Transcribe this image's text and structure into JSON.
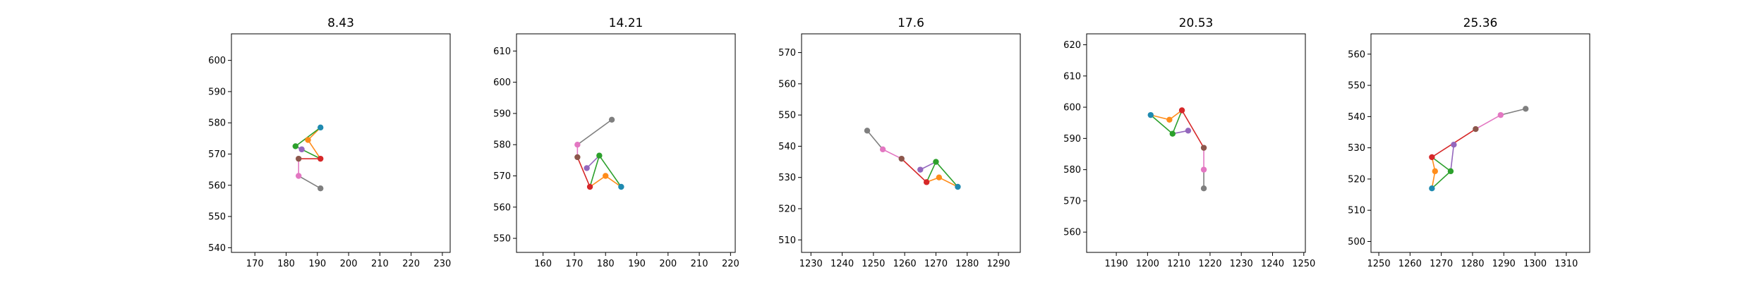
{
  "chart_data": [
    {
      "type": "line",
      "title": "8.43",
      "xlim": [
        162.5,
        232.5
      ],
      "ylim": [
        538.5,
        608.5
      ],
      "xticks": [
        170,
        180,
        190,
        200,
        210,
        220,
        230
      ],
      "yticks": [
        540,
        550,
        560,
        570,
        580,
        590,
        600
      ],
      "points": {
        "teal": [
          191,
          578.5
        ],
        "orange": [
          187,
          574.5
        ],
        "green": [
          183,
          572.5
        ],
        "red": [
          191,
          568.5
        ],
        "purple": [
          185,
          571.5
        ],
        "brown": [
          184,
          568.5
        ],
        "pink": [
          184,
          563
        ],
        "gray": [
          191,
          559
        ]
      }
    },
    {
      "type": "line",
      "title": "14.21",
      "xlim": [
        151.5,
        221.5
      ],
      "ylim": [
        545.5,
        615.5
      ],
      "xticks": [
        160,
        170,
        180,
        190,
        200,
        210,
        220
      ],
      "yticks": [
        550,
        560,
        570,
        580,
        590,
        600,
        610
      ],
      "points": {
        "teal": [
          185,
          566.5
        ],
        "orange": [
          180,
          570
        ],
        "green": [
          178,
          576.5
        ],
        "red": [
          175,
          566.5
        ],
        "purple": [
          174,
          572.5
        ],
        "brown": [
          171,
          576
        ],
        "pink": [
          171,
          580
        ],
        "gray": [
          182,
          588
        ]
      }
    },
    {
      "type": "line",
      "title": "17.6",
      "xlim": [
        1227,
        1297
      ],
      "ylim": [
        506,
        576
      ],
      "xticks": [
        1230,
        1240,
        1250,
        1260,
        1270,
        1280,
        1290
      ],
      "yticks": [
        510,
        520,
        530,
        540,
        550,
        560,
        570
      ],
      "points": {
        "teal": [
          1277,
          527
        ],
        "orange": [
          1271,
          530
        ],
        "green": [
          1270,
          535
        ],
        "red": [
          1267,
          528.5
        ],
        "purple": [
          1265,
          532.5
        ],
        "brown": [
          1259,
          536
        ],
        "pink": [
          1253,
          539
        ],
        "gray": [
          1248,
          545
        ]
      }
    },
    {
      "type": "line",
      "title": "20.53",
      "xlim": [
        1180.5,
        1250.5
      ],
      "ylim": [
        553.5,
        623.5
      ],
      "xticks": [
        1190,
        1200,
        1210,
        1220,
        1230,
        1240,
        1250
      ],
      "yticks": [
        560,
        570,
        580,
        590,
        600,
        610,
        620
      ],
      "points": {
        "teal": [
          1201,
          597.5
        ],
        "orange": [
          1207,
          596
        ],
        "green": [
          1208,
          591.5
        ],
        "red": [
          1211,
          599
        ],
        "purple": [
          1213,
          592.5
        ],
        "brown": [
          1218,
          587
        ],
        "pink": [
          1218,
          580
        ],
        "gray": [
          1218,
          574
        ]
      }
    },
    {
      "type": "line",
      "title": "25.36",
      "xlim": [
        1247.5,
        1317.5
      ],
      "ylim": [
        496.5,
        566.5
      ],
      "xticks": [
        1250,
        1260,
        1270,
        1280,
        1290,
        1300,
        1310
      ],
      "yticks": [
        500,
        510,
        520,
        530,
        540,
        550,
        560
      ],
      "points": {
        "teal": [
          1267,
          517
        ],
        "orange": [
          1268,
          522.5
        ],
        "green": [
          1273,
          522.5
        ],
        "red": [
          1267,
          527
        ],
        "purple": [
          1274,
          531
        ],
        "brown": [
          1281,
          536
        ],
        "pink": [
          1289,
          540.5
        ],
        "gray": [
          1297,
          542.5
        ]
      }
    }
  ],
  "connections": [
    [
      "teal",
      "orange"
    ],
    [
      "orange",
      "red"
    ],
    [
      "teal",
      "green"
    ],
    [
      "green",
      "red"
    ],
    [
      "red",
      "brown"
    ],
    [
      "green",
      "purple"
    ],
    [
      "brown",
      "pink"
    ],
    [
      "pink",
      "gray"
    ]
  ],
  "colors": {
    "teal": "#1f8ab0",
    "orange": "#ff8c1a",
    "green": "#2ca02c",
    "red": "#d62728",
    "purple": "#9467bd",
    "brown": "#8c564b",
    "pink": "#e377c2",
    "gray": "#7f7f7f"
  },
  "line_colors": {
    "teal-orange": "#ff8c1a",
    "orange-red": "#ff8c1a",
    "teal-green": "#2ca02c",
    "green-red": "#2ca02c",
    "red-brown": "#d62728",
    "green-purple": "#9467bd",
    "brown-pink": "#e377c2",
    "pink-gray": "#7f7f7f"
  }
}
